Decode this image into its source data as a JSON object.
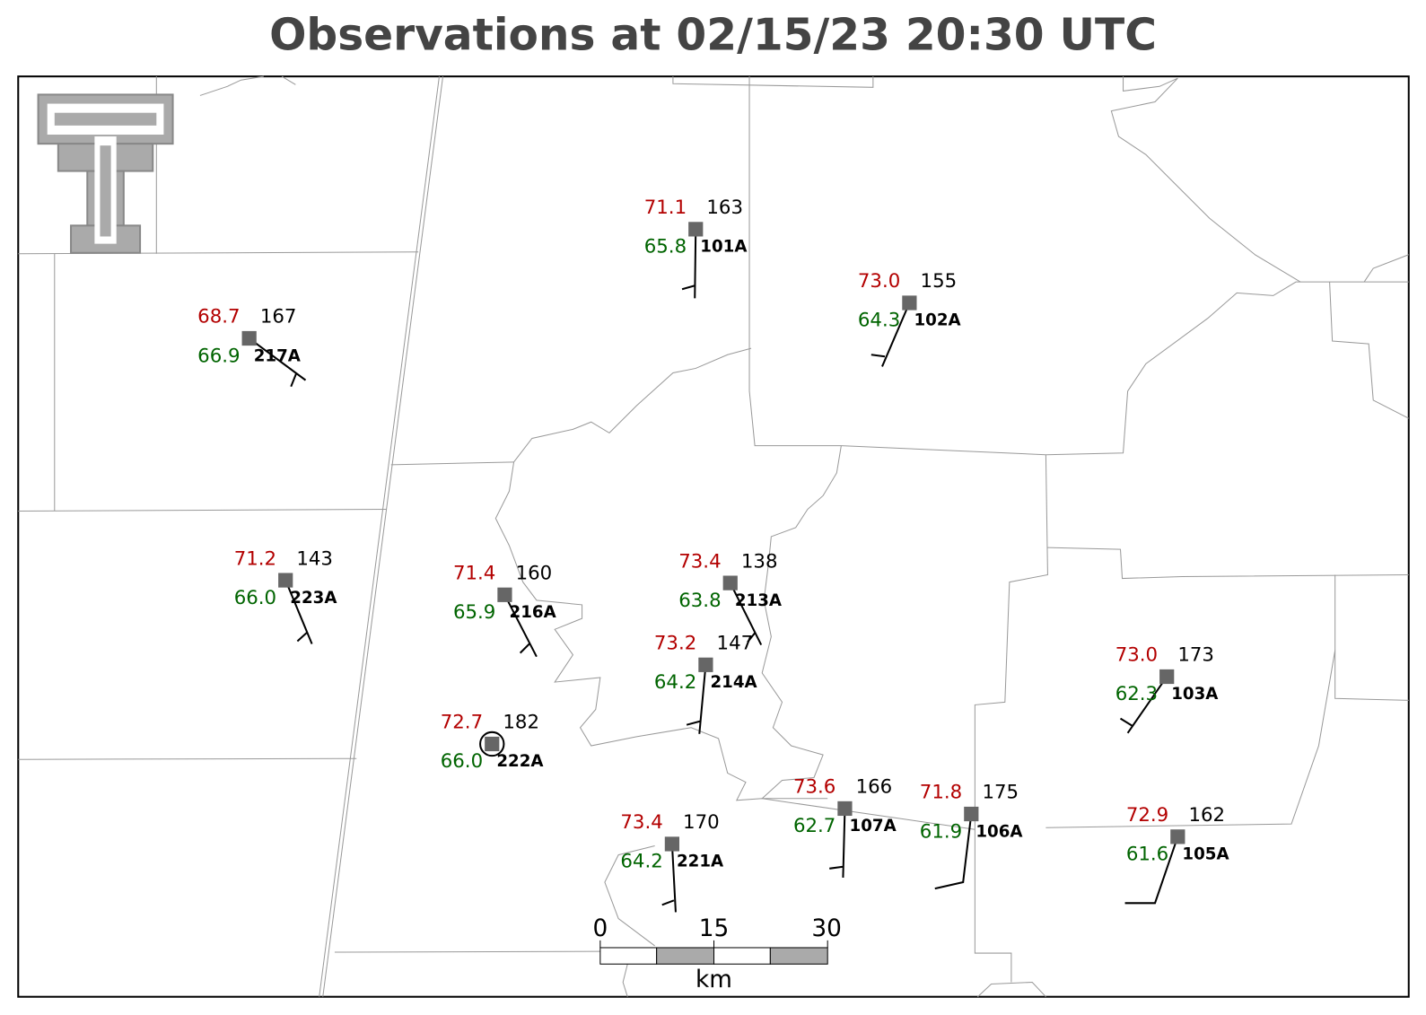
{
  "title": "Observations at 02/15/23 20:30 UTC",
  "stations": [
    {
      "id": "101A",
      "temperature": "71.1",
      "pressure": "163",
      "dewpoint": "65.8"
    },
    {
      "id": "102A",
      "temperature": "73.0",
      "pressure": "155",
      "dewpoint": "64.3"
    },
    {
      "id": "217A",
      "temperature": "68.7",
      "pressure": "167",
      "dewpoint": "66.9"
    },
    {
      "id": "223A",
      "temperature": "71.2",
      "pressure": "143",
      "dewpoint": "66.0"
    },
    {
      "id": "216A",
      "temperature": "71.4",
      "pressure": "160",
      "dewpoint": "65.9"
    },
    {
      "id": "213A",
      "temperature": "73.4",
      "pressure": "138",
      "dewpoint": "63.8"
    },
    {
      "id": "214A",
      "temperature": "73.2",
      "pressure": "147",
      "dewpoint": "64.2"
    },
    {
      "id": "222A",
      "temperature": "72.7",
      "pressure": "182",
      "dewpoint": "66.0"
    },
    {
      "id": "221A",
      "temperature": "73.4",
      "pressure": "170",
      "dewpoint": "64.2"
    },
    {
      "id": "107A",
      "temperature": "73.6",
      "pressure": "166",
      "dewpoint": "62.7"
    },
    {
      "id": "106A",
      "temperature": "71.8",
      "pressure": "175",
      "dewpoint": "61.9"
    },
    {
      "id": "105A",
      "temperature": "72.9",
      "pressure": "162",
      "dewpoint": "61.6"
    },
    {
      "id": "103A",
      "temperature": "73.0",
      "pressure": "173",
      "dewpoint": "62.3"
    }
  ],
  "scale_bar": {
    "ticks": [
      "0",
      "15",
      "30"
    ],
    "unit": "km"
  }
}
